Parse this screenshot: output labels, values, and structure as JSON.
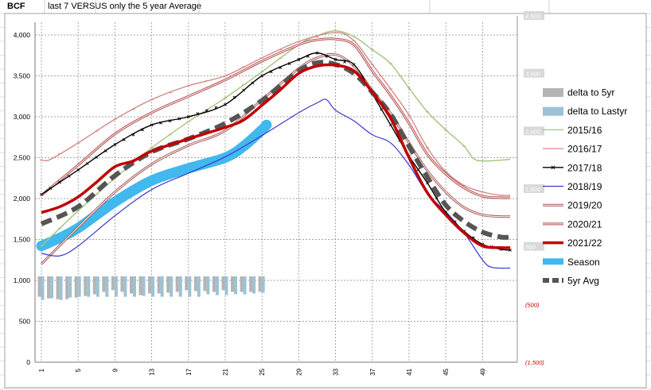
{
  "header": {
    "cell_label": "BCF",
    "subtitle": "last 7 VERSUS only the 5 year Average"
  },
  "chart_data": {
    "type": "line",
    "title": "last 7 VERSUS only the 5 year Average",
    "ylabel": "BCF",
    "ylim": [
      0,
      4000
    ],
    "y_ticks": [
      "0",
      "500",
      "1,000",
      "1,500",
      "2,000",
      "2,500",
      "3,000",
      "3,500",
      "4,000"
    ],
    "y2lim": [
      -1500,
      4500
    ],
    "y2_ticks": [
      "(1,500)",
      "(500)",
      "500",
      "1,500",
      "2,500",
      "3,500",
      "4,500"
    ],
    "x_ticks": [
      "1",
      "5",
      "9",
      "13",
      "17",
      "21",
      "25",
      "29",
      "33",
      "37",
      "41",
      "45",
      "49"
    ],
    "x_range": [
      1,
      52
    ],
    "colors": {
      "grid": "#888888",
      "axis_text": "#000000",
      "secondary_axis_text": "#999999",
      "secondary_negative_text": "#cc0000",
      "secondary_label_bg": "#d9d9d9",
      "season": "#41b8ee",
      "avg": "#555555",
      "delta_5yr": "#b4b4b4",
      "delta_lastyr": "#9cc3d5"
    },
    "series": [
      {
        "name": "2015/16",
        "color": "#a3c47c",
        "style": "marker-dash",
        "knots": [
          [
            1,
            1420
          ],
          [
            5,
            1850
          ],
          [
            9,
            2250
          ],
          [
            13,
            2620
          ],
          [
            17,
            2940
          ],
          [
            21,
            3230
          ],
          [
            25,
            3550
          ],
          [
            29,
            3880
          ],
          [
            31,
            3990
          ],
          [
            33,
            4050
          ],
          [
            35,
            3980
          ],
          [
            37,
            3820
          ],
          [
            39,
            3650
          ],
          [
            41,
            3350
          ],
          [
            43,
            3060
          ],
          [
            45,
            2840
          ],
          [
            47,
            2640
          ],
          [
            48,
            2490
          ],
          [
            49,
            2460
          ],
          [
            51,
            2470
          ],
          [
            52,
            2480
          ]
        ]
      },
      {
        "name": "2016/17",
        "color": "#d58888",
        "style": "marker-dash",
        "knots": [
          [
            1,
            2470
          ],
          [
            2,
            2480
          ],
          [
            5,
            2680
          ],
          [
            9,
            2970
          ],
          [
            13,
            3210
          ],
          [
            17,
            3380
          ],
          [
            21,
            3500
          ],
          [
            25,
            3720
          ],
          [
            29,
            3920
          ],
          [
            33,
            4030
          ],
          [
            35,
            3930
          ],
          [
            37,
            3640
          ],
          [
            39,
            3340
          ],
          [
            41,
            3020
          ],
          [
            43,
            2620
          ],
          [
            45,
            2330
          ],
          [
            47,
            2160
          ],
          [
            49,
            2080
          ],
          [
            51,
            2040
          ],
          [
            52,
            2040
          ]
        ]
      },
      {
        "name": "2017/18",
        "color": "#000000",
        "style": "marker-x",
        "knots": [
          [
            1,
            2050
          ],
          [
            5,
            2350
          ],
          [
            9,
            2660
          ],
          [
            13,
            2900
          ],
          [
            17,
            3000
          ],
          [
            21,
            3150
          ],
          [
            25,
            3500
          ],
          [
            29,
            3700
          ],
          [
            31,
            3780
          ],
          [
            33,
            3700
          ],
          [
            35,
            3640
          ],
          [
            37,
            3280
          ],
          [
            39,
            2900
          ],
          [
            41,
            2520
          ],
          [
            43,
            2190
          ],
          [
            45,
            1830
          ],
          [
            47,
            1600
          ],
          [
            49,
            1440
          ],
          [
            51,
            1380
          ],
          [
            52,
            1370
          ]
        ]
      },
      {
        "name": "2018/19",
        "color": "#3a3ad0",
        "style": "line",
        "knots": [
          [
            1,
            1330
          ],
          [
            3,
            1300
          ],
          [
            5,
            1420
          ],
          [
            9,
            1790
          ],
          [
            13,
            2110
          ],
          [
            17,
            2310
          ],
          [
            21,
            2510
          ],
          [
            25,
            2770
          ],
          [
            29,
            3050
          ],
          [
            31,
            3170
          ],
          [
            32,
            3210
          ],
          [
            33,
            3080
          ],
          [
            35,
            2950
          ],
          [
            37,
            2780
          ],
          [
            39,
            2680
          ],
          [
            41,
            2410
          ],
          [
            43,
            2060
          ],
          [
            45,
            1840
          ],
          [
            47,
            1580
          ],
          [
            49,
            1250
          ],
          [
            50,
            1160
          ],
          [
            52,
            1150
          ]
        ]
      },
      {
        "name": "2019/20",
        "color": "#a85858",
        "style": "double",
        "knots": [
          [
            1,
            1200
          ],
          [
            5,
            1650
          ],
          [
            9,
            2080
          ],
          [
            13,
            2420
          ],
          [
            17,
            2650
          ],
          [
            21,
            2830
          ],
          [
            25,
            3210
          ],
          [
            29,
            3590
          ],
          [
            31,
            3720
          ],
          [
            33,
            3760
          ],
          [
            35,
            3620
          ],
          [
            37,
            3320
          ],
          [
            39,
            3040
          ],
          [
            41,
            2680
          ],
          [
            43,
            2340
          ],
          [
            45,
            2080
          ],
          [
            47,
            1890
          ],
          [
            49,
            1800
          ],
          [
            51,
            1780
          ],
          [
            52,
            1780
          ]
        ]
      },
      {
        "name": "2020/21",
        "color": "#b24848",
        "style": "double",
        "knots": [
          [
            1,
            2040
          ],
          [
            5,
            2410
          ],
          [
            9,
            2790
          ],
          [
            13,
            3050
          ],
          [
            17,
            3250
          ],
          [
            21,
            3450
          ],
          [
            25,
            3680
          ],
          [
            29,
            3880
          ],
          [
            31,
            3940
          ],
          [
            33,
            3950
          ],
          [
            35,
            3880
          ],
          [
            37,
            3560
          ],
          [
            39,
            3260
          ],
          [
            41,
            2920
          ],
          [
            43,
            2540
          ],
          [
            45,
            2300
          ],
          [
            47,
            2130
          ],
          [
            49,
            2030
          ],
          [
            51,
            2010
          ],
          [
            52,
            2010
          ]
        ]
      },
      {
        "name": "2021/22",
        "color": "#c00000",
        "style": "thick",
        "knots": [
          [
            1,
            1830
          ],
          [
            3,
            1900
          ],
          [
            5,
            2020
          ],
          [
            7,
            2200
          ],
          [
            9,
            2390
          ],
          [
            11,
            2460
          ],
          [
            13,
            2580
          ],
          [
            17,
            2730
          ],
          [
            21,
            2870
          ],
          [
            23,
            2960
          ],
          [
            25,
            3140
          ],
          [
            27,
            3330
          ],
          [
            29,
            3530
          ],
          [
            31,
            3620
          ],
          [
            33,
            3630
          ],
          [
            35,
            3560
          ],
          [
            37,
            3300
          ],
          [
            39,
            2980
          ],
          [
            41,
            2500
          ],
          [
            43,
            2070
          ],
          [
            45,
            1800
          ],
          [
            47,
            1580
          ],
          [
            49,
            1420
          ],
          [
            51,
            1400
          ],
          [
            52,
            1400
          ]
        ]
      },
      {
        "name": "Season",
        "color": "#41b8ee",
        "style": "season",
        "knots": [
          [
            1,
            1420
          ],
          [
            3,
            1520
          ],
          [
            5,
            1640
          ],
          [
            9,
            1960
          ],
          [
            13,
            2220
          ],
          [
            17,
            2370
          ],
          [
            21,
            2500
          ],
          [
            23,
            2640
          ],
          [
            25,
            2840
          ],
          [
            25.5,
            2900
          ]
        ]
      },
      {
        "name": "5yr Avg",
        "color": "#555555",
        "style": "avg",
        "knots": [
          [
            1,
            1690
          ],
          [
            5,
            1900
          ],
          [
            9,
            2280
          ],
          [
            13,
            2570
          ],
          [
            17,
            2730
          ],
          [
            21,
            2920
          ],
          [
            25,
            3200
          ],
          [
            29,
            3560
          ],
          [
            31,
            3660
          ],
          [
            33,
            3640
          ],
          [
            35,
            3530
          ],
          [
            37,
            3300
          ],
          [
            39,
            3030
          ],
          [
            41,
            2640
          ],
          [
            43,
            2260
          ],
          [
            45,
            1920
          ],
          [
            47,
            1720
          ],
          [
            49,
            1590
          ],
          [
            51,
            1530
          ],
          [
            52,
            1530
          ]
        ]
      }
    ],
    "delta_bars": {
      "baseline": 1050,
      "weeks": [
        1,
        2,
        3,
        4,
        5,
        6,
        7,
        8,
        9,
        10,
        11,
        12,
        13,
        14,
        15,
        16,
        17,
        18,
        19,
        20,
        21,
        22,
        23,
        24,
        25
      ],
      "delta_to_5yr": [
        800,
        780,
        770,
        770,
        790,
        810,
        830,
        860,
        880,
        860,
        840,
        820,
        840,
        840,
        850,
        860,
        880,
        870,
        870,
        860,
        880,
        860,
        860,
        860,
        860
      ],
      "delta_to_lastyr": [
        760,
        780,
        760,
        790,
        800,
        800,
        800,
        800,
        800,
        800,
        800,
        810,
        800,
        800,
        800,
        800,
        800,
        800,
        830,
        820,
        820,
        830,
        830,
        840,
        850
      ]
    },
    "legend": {
      "placement": "right",
      "items": [
        {
          "label": "delta to 5yr",
          "key": "delta_5yr"
        },
        {
          "label": "delta to Lastyr",
          "key": "delta_lastyr"
        },
        {
          "label": "2015/16",
          "key": "2015/16"
        },
        {
          "label": "2016/17",
          "key": "2016/17"
        },
        {
          "label": "2017/18",
          "key": "2017/18"
        },
        {
          "label": "2018/19",
          "key": "2018/19"
        },
        {
          "label": "2019/20",
          "key": "2019/20"
        },
        {
          "label": "2020/21",
          "key": "2020/21"
        },
        {
          "label": "2021/22",
          "key": "2021/22"
        },
        {
          "label": "Season",
          "key": "Season"
        },
        {
          "label": "5yr Avg",
          "key": "5yr Avg"
        }
      ]
    }
  }
}
